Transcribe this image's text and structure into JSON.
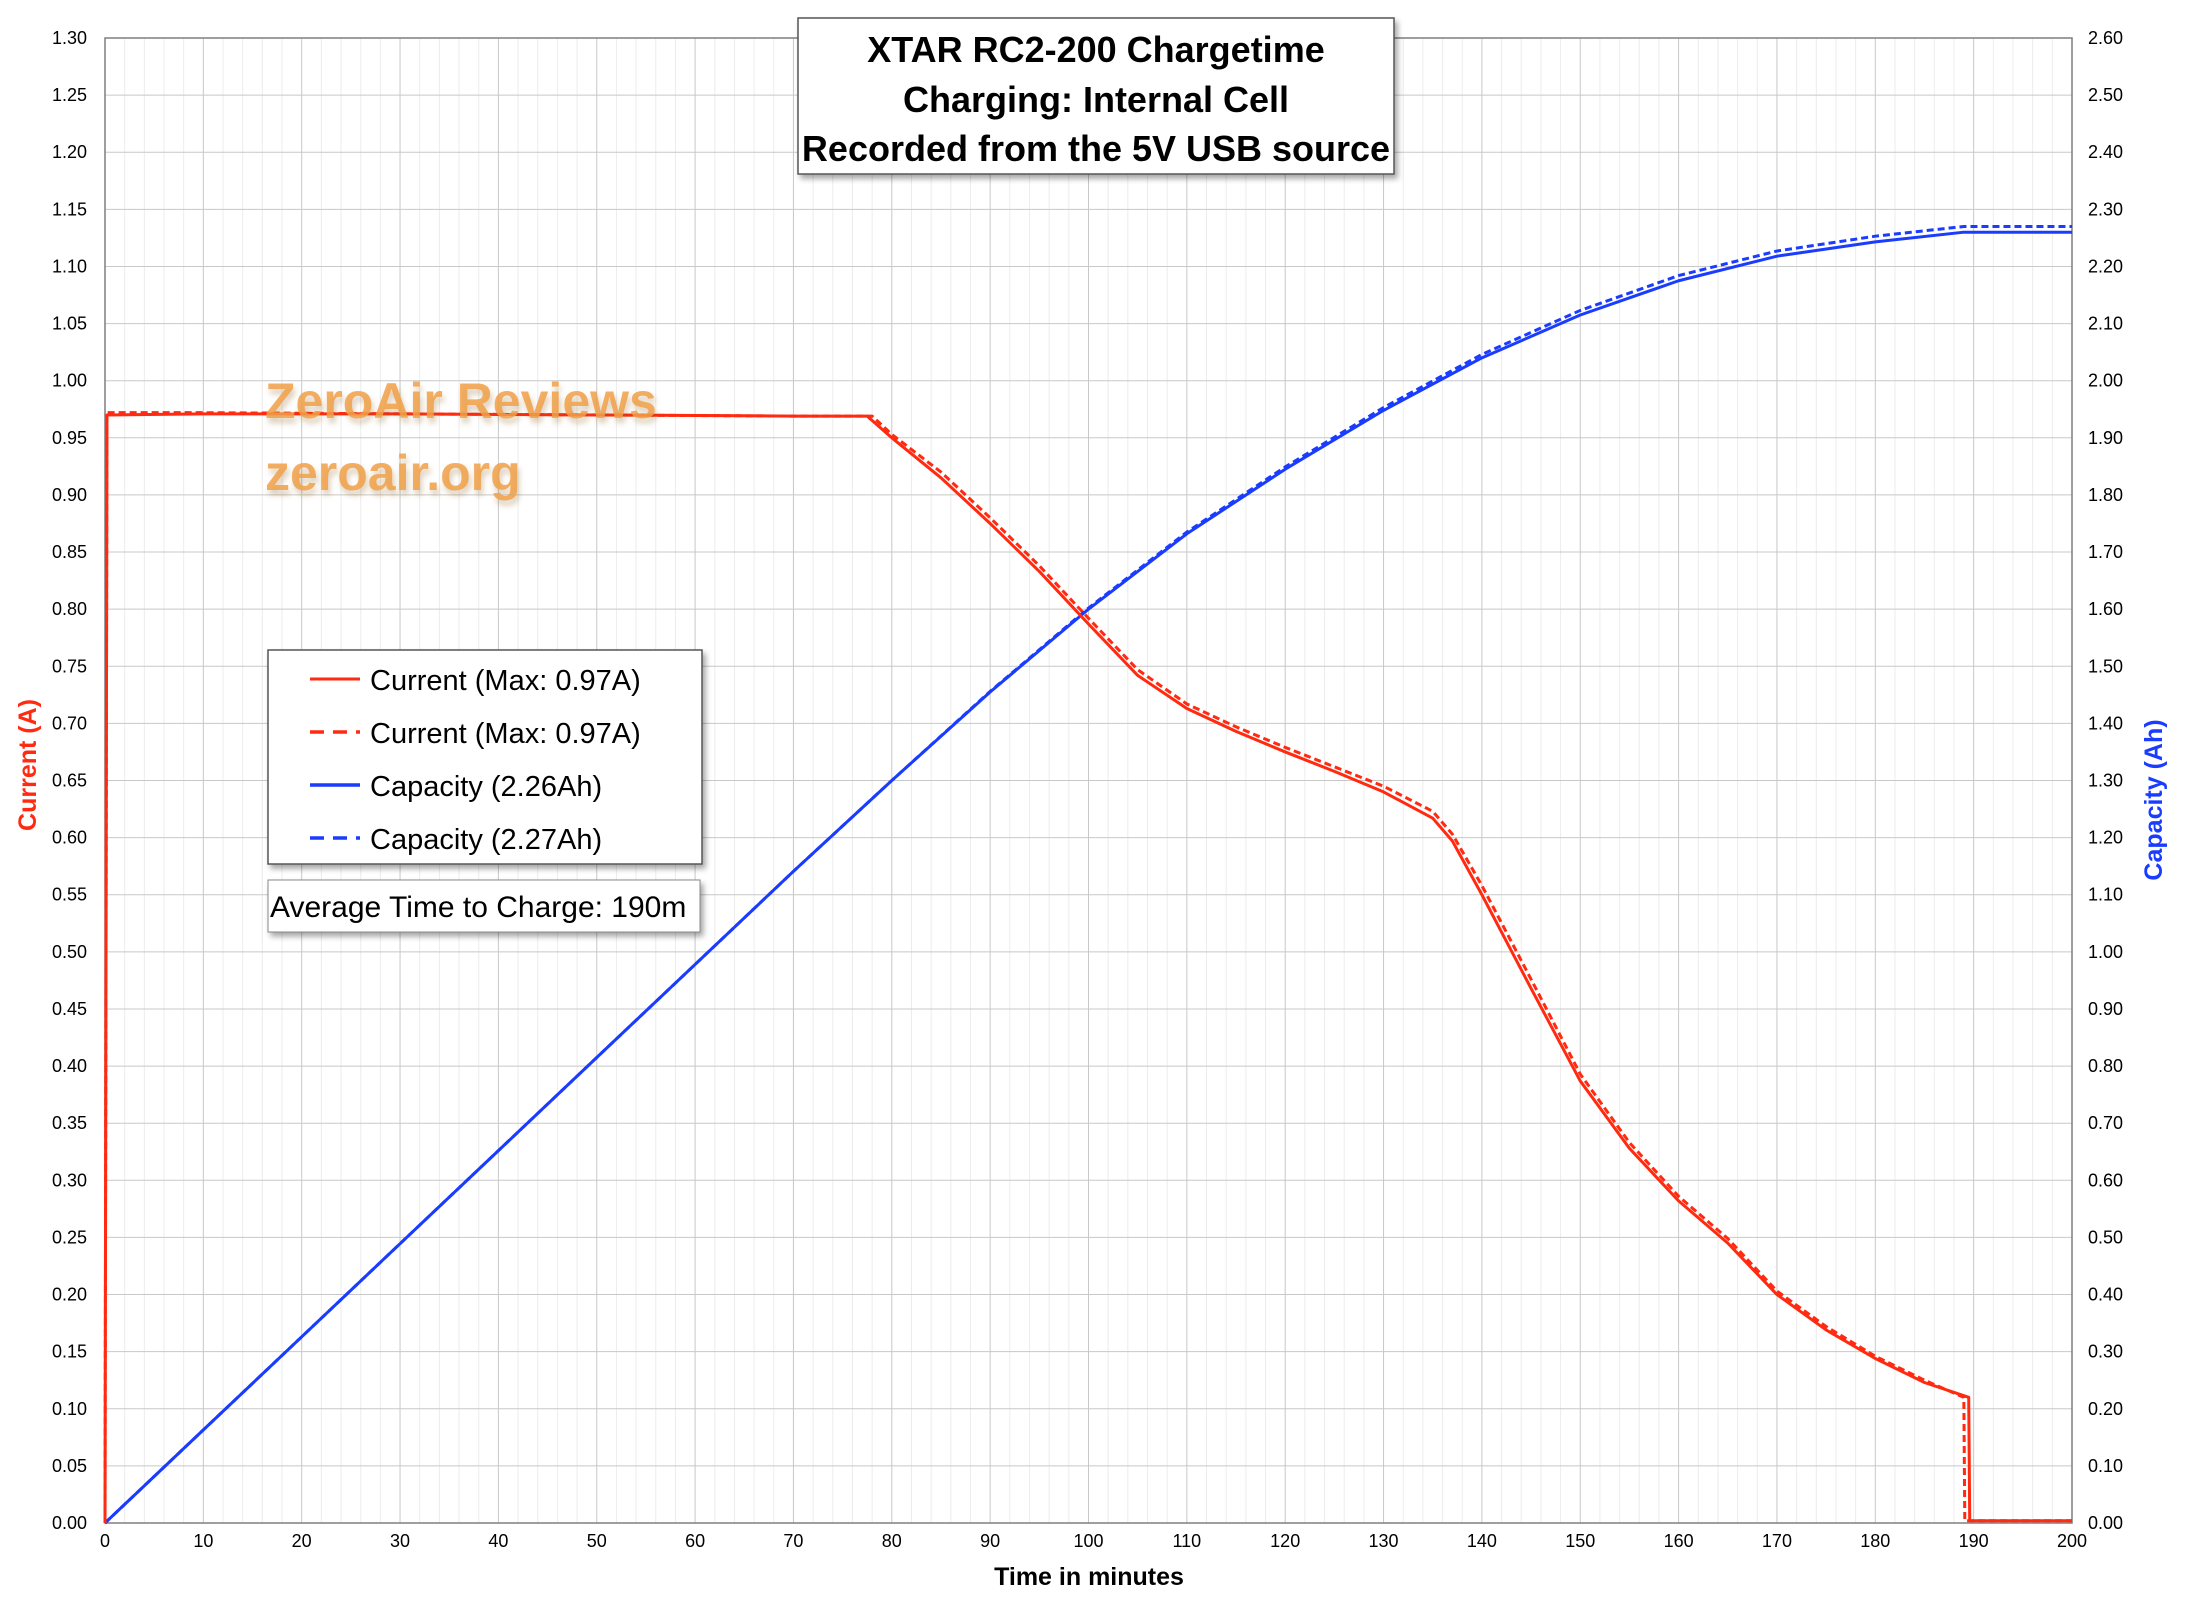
{
  "chart_data": {
    "type": "line",
    "title_lines": [
      "XTAR RC2-200 Chargetime",
      "Charging: Internal Cell",
      "Recorded from the 5V USB source"
    ],
    "xlabel": "Time in minutes",
    "ylabel_left": "Current (A)",
    "ylabel_right": "Capacity (Ah)",
    "xlim": [
      0,
      200
    ],
    "ylim_left": [
      0,
      1.3
    ],
    "ylim_right": [
      0,
      2.6
    ],
    "x_ticks": [
      "0",
      "10",
      "20",
      "30",
      "40",
      "50",
      "60",
      "70",
      "80",
      "90",
      "100",
      "110",
      "120",
      "130",
      "140",
      "150",
      "160",
      "170",
      "180",
      "190",
      "200"
    ],
    "y_left_ticks": [
      "0.00",
      "0.05",
      "0.10",
      "0.15",
      "0.20",
      "0.25",
      "0.30",
      "0.35",
      "0.40",
      "0.45",
      "0.50",
      "0.55",
      "0.60",
      "0.65",
      "0.70",
      "0.75",
      "0.80",
      "0.85",
      "0.90",
      "0.95",
      "1.00",
      "1.05",
      "1.10",
      "1.15",
      "1.20",
      "1.25",
      "1.30"
    ],
    "y_right_ticks": [
      "0.00",
      "0.10",
      "0.20",
      "0.30",
      "0.40",
      "0.50",
      "0.60",
      "0.70",
      "0.80",
      "0.90",
      "1.00",
      "1.10",
      "1.20",
      "1.30",
      "1.40",
      "1.50",
      "1.60",
      "1.70",
      "1.80",
      "1.90",
      "2.00",
      "2.10",
      "2.20",
      "2.30",
      "2.40",
      "2.50",
      "2.60"
    ],
    "grid": true,
    "legend_position": "middle-left",
    "note": "Average Time to Charge: 190m",
    "watermark": [
      "ZeroAir Reviews",
      "zeroair.org"
    ],
    "colors": {
      "current": "#ff2a10",
      "capacity": "#1a3cff",
      "left_axis_label": "#ff2a10",
      "right_axis_label": "#1a3cff",
      "watermark": "#f0a048"
    },
    "series": [
      {
        "name": "Current (Max: 0.97A)",
        "axis": "left",
        "style": "solid",
        "color": "#ff2a10",
        "points": [
          [
            0,
            0
          ],
          [
            0.2,
            0.97
          ],
          [
            10,
            0.971
          ],
          [
            30,
            0.971
          ],
          [
            50,
            0.97
          ],
          [
            70,
            0.969
          ],
          [
            77.5,
            0.969
          ],
          [
            80,
            0.95
          ],
          [
            85,
            0.915
          ],
          [
            90,
            0.875
          ],
          [
            95,
            0.833
          ],
          [
            100,
            0.787
          ],
          [
            105,
            0.742
          ],
          [
            110,
            0.713
          ],
          [
            115,
            0.693
          ],
          [
            120,
            0.675
          ],
          [
            125,
            0.658
          ],
          [
            130,
            0.64
          ],
          [
            135,
            0.617
          ],
          [
            137,
            0.597
          ],
          [
            140,
            0.55
          ],
          [
            145,
            0.468
          ],
          [
            150,
            0.387
          ],
          [
            155,
            0.328
          ],
          [
            160,
            0.282
          ],
          [
            165,
            0.245
          ],
          [
            170,
            0.2
          ],
          [
            175,
            0.169
          ],
          [
            180,
            0.144
          ],
          [
            185,
            0.123
          ],
          [
            189.5,
            0.11
          ],
          [
            189.6,
            0.002
          ],
          [
            200,
            0.002
          ]
        ]
      },
      {
        "name": "Current (Max: 0.97A)",
        "axis": "left",
        "style": "dashed",
        "color": "#ff2a10",
        "points": [
          [
            0,
            0
          ],
          [
            0.2,
            0.972
          ],
          [
            10,
            0.972
          ],
          [
            30,
            0.971
          ],
          [
            50,
            0.97
          ],
          [
            70,
            0.969
          ],
          [
            78,
            0.969
          ],
          [
            80,
            0.953
          ],
          [
            85,
            0.92
          ],
          [
            90,
            0.88
          ],
          [
            95,
            0.838
          ],
          [
            100,
            0.792
          ],
          [
            105,
            0.747
          ],
          [
            110,
            0.717
          ],
          [
            115,
            0.697
          ],
          [
            120,
            0.679
          ],
          [
            125,
            0.662
          ],
          [
            130,
            0.645
          ],
          [
            135,
            0.623
          ],
          [
            137,
            0.603
          ],
          [
            140,
            0.558
          ],
          [
            145,
            0.476
          ],
          [
            150,
            0.393
          ],
          [
            155,
            0.333
          ],
          [
            160,
            0.286
          ],
          [
            165,
            0.249
          ],
          [
            170,
            0.203
          ],
          [
            175,
            0.172
          ],
          [
            180,
            0.146
          ],
          [
            185,
            0.125
          ],
          [
            189,
            0.11
          ],
          [
            189.1,
            0.002
          ],
          [
            200,
            0.002
          ]
        ]
      },
      {
        "name": "Capacity (2.26Ah)",
        "axis": "right",
        "style": "solid",
        "color": "#1a3cff",
        "points": [
          [
            0,
            0
          ],
          [
            10,
            0.163
          ],
          [
            20,
            0.326
          ],
          [
            30,
            0.489
          ],
          [
            40,
            0.652
          ],
          [
            50,
            0.815
          ],
          [
            60,
            0.978
          ],
          [
            70,
            1.141
          ],
          [
            80,
            1.3
          ],
          [
            90,
            1.455
          ],
          [
            100,
            1.6
          ],
          [
            110,
            1.732
          ],
          [
            120,
            1.845
          ],
          [
            130,
            1.948
          ],
          [
            140,
            2.04
          ],
          [
            150,
            2.115
          ],
          [
            160,
            2.175
          ],
          [
            170,
            2.218
          ],
          [
            180,
            2.243
          ],
          [
            189,
            2.26
          ],
          [
            200,
            2.26
          ]
        ]
      },
      {
        "name": "Capacity (2.27Ah)",
        "axis": "right",
        "style": "dashed",
        "color": "#1a3cff",
        "points": [
          [
            0,
            0
          ],
          [
            10,
            0.163
          ],
          [
            20,
            0.326
          ],
          [
            30,
            0.489
          ],
          [
            40,
            0.652
          ],
          [
            50,
            0.815
          ],
          [
            60,
            0.978
          ],
          [
            70,
            1.141
          ],
          [
            80,
            1.3
          ],
          [
            90,
            1.456
          ],
          [
            100,
            1.602
          ],
          [
            110,
            1.735
          ],
          [
            120,
            1.849
          ],
          [
            130,
            1.953
          ],
          [
            140,
            2.046
          ],
          [
            150,
            2.123
          ],
          [
            160,
            2.184
          ],
          [
            170,
            2.227
          ],
          [
            180,
            2.253
          ],
          [
            189,
            2.27
          ],
          [
            200,
            2.27
          ]
        ]
      }
    ]
  }
}
